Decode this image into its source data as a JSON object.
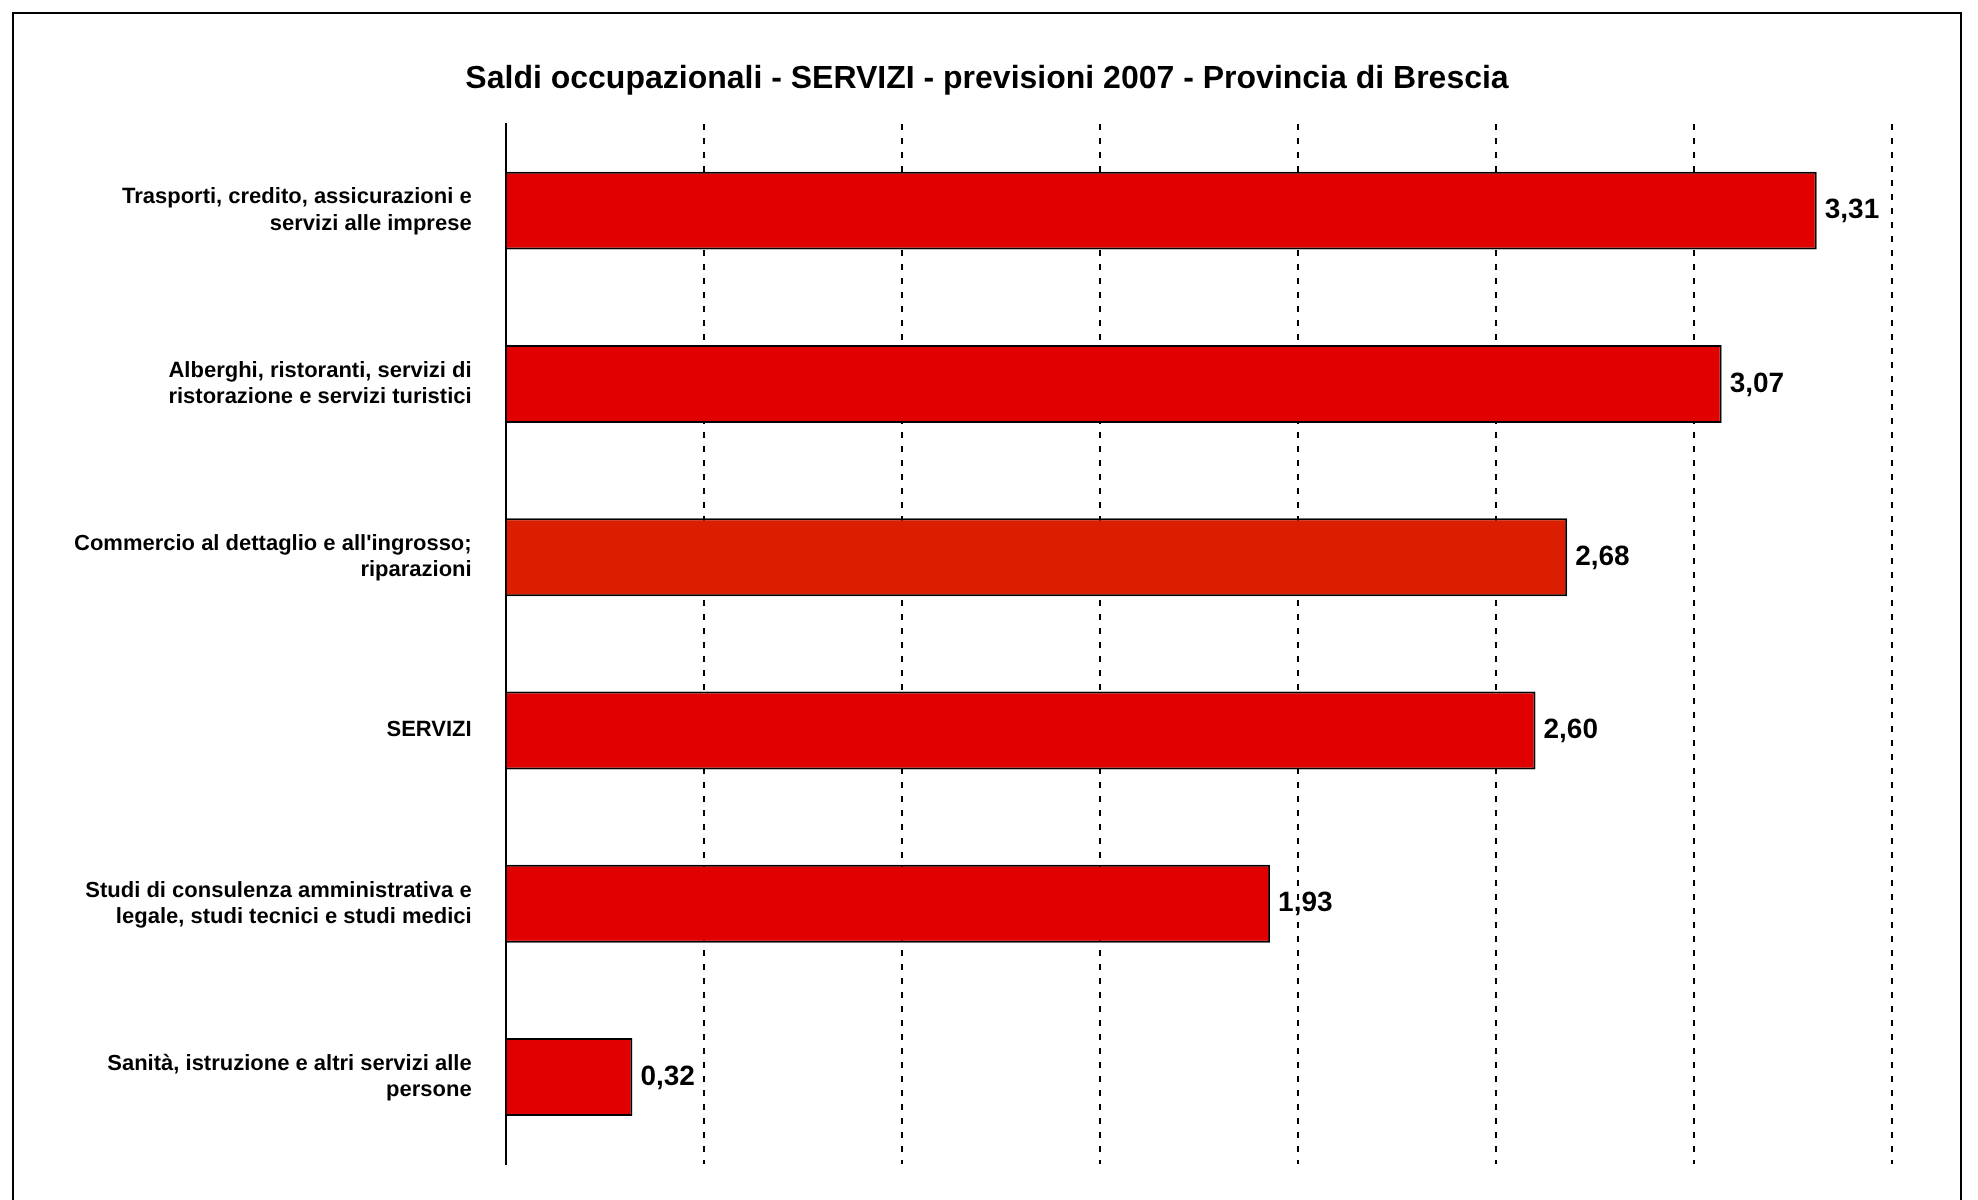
{
  "chart_data": {
    "type": "bar",
    "orientation": "horizontal",
    "title": "Saldi occupazionali - SERVIZI - previsioni 2007  - Provincia di Brescia",
    "categories": [
      "Trasporti, credito, assicurazioni e servizi alle imprese",
      "Alberghi, ristoranti, servizi di ristorazione e servizi turistici",
      "Commercio al dettaglio e all'ingrosso; riparazioni",
      "SERVIZI",
      "Studi di consulenza amministrativa e legale, studi tecnici e studi medici",
      "Sanità, istruzione e altri servizi alle persone"
    ],
    "values": [
      3.31,
      3.07,
      2.68,
      2.6,
      1.93,
      0.32
    ],
    "value_labels": [
      "3,31",
      "3,07",
      "2,68",
      "2,60",
      "1,93",
      "0,32"
    ],
    "colors": [
      "#e00000",
      "#e00000",
      "#dc1e00",
      "#e00000",
      "#e00000",
      "#e00000"
    ],
    "xlim": [
      0,
      3.5
    ],
    "xticks": [
      {
        "value": 0,
        "label": null
      },
      {
        "value": 0.5,
        "label": null
      },
      {
        "value": 1,
        "label": null
      },
      {
        "value": 1.5,
        "label": null
      },
      {
        "value": 2,
        "label": null
      },
      {
        "value": 2.5,
        "label": null
      },
      {
        "value": 3,
        "label": null
      },
      {
        "value": 3.5,
        "label": null
      }
    ],
    "grid": "x",
    "tick_labels": "y",
    "legend": false
  }
}
